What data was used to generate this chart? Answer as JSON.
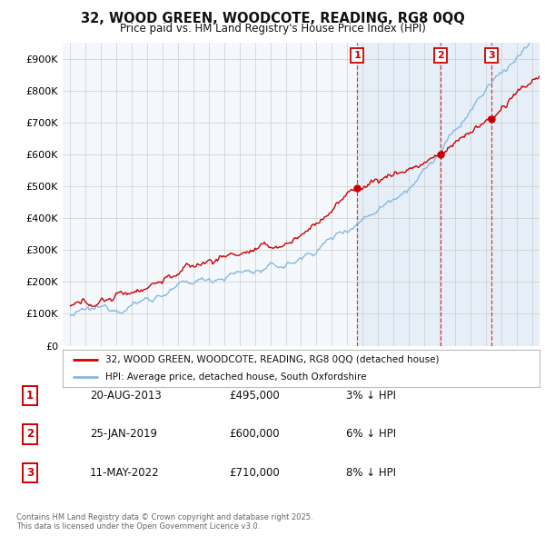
{
  "title_line1": "32, WOOD GREEN, WOODCOTE, READING, RG8 0QQ",
  "title_line2": "Price paid vs. HM Land Registry's House Price Index (HPI)",
  "ylim": [
    0,
    950000
  ],
  "yticks": [
    0,
    100000,
    200000,
    300000,
    400000,
    500000,
    600000,
    700000,
    800000,
    900000
  ],
  "ytick_labels": [
    "£0",
    "£100K",
    "£200K",
    "£300K",
    "£400K",
    "£500K",
    "£600K",
    "£700K",
    "£800K",
    "£900K"
  ],
  "xlim_start": 1994.5,
  "xlim_end": 2025.5,
  "sales": [
    {
      "year": 2013.64,
      "price": 495000,
      "label": "1"
    },
    {
      "year": 2019.07,
      "price": 600000,
      "label": "2"
    },
    {
      "year": 2022.36,
      "price": 710000,
      "label": "3"
    }
  ],
  "sale_color": "#cc0000",
  "hpi_color": "#88b8e0",
  "shade_color": "#deeaf5",
  "legend_entries": [
    "32, WOOD GREEN, WOODCOTE, READING, RG8 0QQ (detached house)",
    "HPI: Average price, detached house, South Oxfordshire"
  ],
  "table_rows": [
    {
      "num": "1",
      "date": "20-AUG-2013",
      "price": "£495,000",
      "change": "3% ↓ HPI"
    },
    {
      "num": "2",
      "date": "25-JAN-2019",
      "price": "£600,000",
      "change": "6% ↓ HPI"
    },
    {
      "num": "3",
      "date": "11-MAY-2022",
      "price": "£710,000",
      "change": "8% ↓ HPI"
    }
  ],
  "footer": "Contains HM Land Registry data © Crown copyright and database right 2025.\nThis data is licensed under the Open Government Licence v3.0.",
  "bg_color": "#ffffff",
  "plot_bg_color": "#f4f8fc",
  "grid_color": "#cccccc"
}
